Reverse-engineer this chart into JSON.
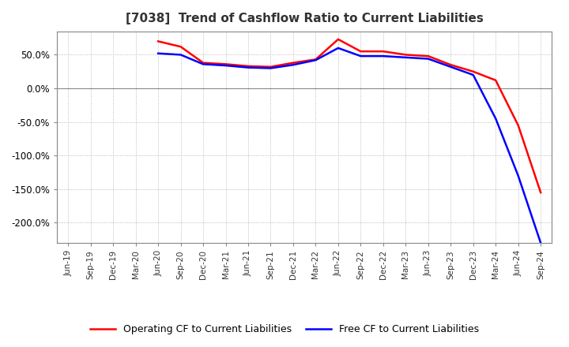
{
  "title": "[7038]  Trend of Cashflow Ratio to Current Liabilities",
  "title_fontsize": 11,
  "ylim": [
    -230,
    85
  ],
  "yticks": [
    50.0,
    0.0,
    -50.0,
    -100.0,
    -150.0,
    -200.0
  ],
  "background_color": "#ffffff",
  "grid_color": "#aaaaaa",
  "x_labels": [
    "Jun-19",
    "Sep-19",
    "Dec-19",
    "Mar-20",
    "Jun-20",
    "Sep-20",
    "Dec-20",
    "Mar-21",
    "Jun-21",
    "Sep-21",
    "Dec-21",
    "Mar-22",
    "Jun-22",
    "Sep-22",
    "Dec-22",
    "Mar-23",
    "Jun-23",
    "Sep-23",
    "Dec-23",
    "Mar-24",
    "Jun-24",
    "Sep-24"
  ],
  "operating_cf": [
    null,
    null,
    null,
    null,
    70,
    62,
    38,
    36,
    33,
    32,
    38,
    43,
    73,
    55,
    55,
    50,
    48,
    35,
    25,
    12,
    -55,
    -155
  ],
  "free_cf": [
    null,
    null,
    null,
    null,
    52,
    50,
    36,
    34,
    31,
    30,
    35,
    42,
    60,
    48,
    48,
    46,
    44,
    32,
    20,
    -45,
    -130,
    -230
  ],
  "operating_color": "#ff0000",
  "free_color": "#0000ff",
  "line_width": 1.8,
  "legend_fontsize": 9
}
